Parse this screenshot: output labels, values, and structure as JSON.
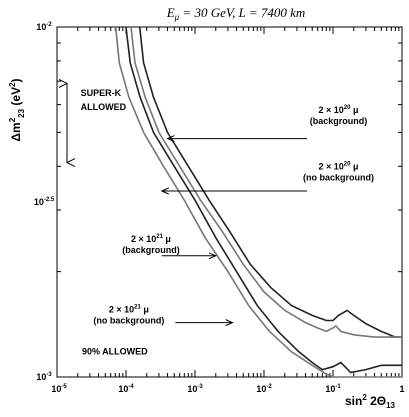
{
  "chart_data": {
    "type": "line",
    "title": "E_μ = 30 GeV, L = 7400 km",
    "title_parts": {
      "e_symbol": "E",
      "e_sub": "μ",
      "rest": " = 30 GeV, L = 7400 km"
    },
    "xlabel": {
      "prefix": "sin",
      "sup": "2",
      "mid": " 2Θ",
      "sub": "13"
    },
    "ylabel": {
      "prefix": "Δm",
      "sup": "2",
      "sub": "23",
      "unit_open": " (eV",
      "unit_sup": "2",
      "unit_close": ")"
    },
    "xscale": "log",
    "yscale": "log",
    "xlim": [
      1e-05,
      1
    ],
    "ylim": [
      0.001,
      0.01
    ],
    "x_ticks": [
      {
        "base": "10",
        "exp": "-5",
        "value": 1e-05
      },
      {
        "base": "10",
        "exp": "-4",
        "value": 0.0001
      },
      {
        "base": "10",
        "exp": "-3",
        "value": 0.001
      },
      {
        "base": "10",
        "exp": "-2",
        "value": 0.01
      },
      {
        "base": "10",
        "exp": "-1",
        "value": 0.1
      },
      {
        "base": "1",
        "exp": "",
        "value": 1
      }
    ],
    "y_ticks": [
      {
        "base": "10",
        "exp": "-3",
        "value": 0.001
      },
      {
        "base": "10",
        "exp": "-2.5",
        "value": 0.00316
      },
      {
        "base": "10",
        "exp": "-2",
        "value": 0.01
      }
    ],
    "series": [
      {
        "color": "#222222",
        "points": [
          [
            0.000158,
            0.01
          ],
          [
            0.00018,
            0.0079
          ],
          [
            0.00025,
            0.0063
          ],
          [
            0.0004,
            0.005
          ],
          [
            0.0008,
            0.004
          ],
          [
            0.0016,
            0.0032
          ],
          [
            0.0032,
            0.0026
          ],
          [
            0.0063,
            0.0021
          ],
          [
            0.0126,
            0.0018
          ],
          [
            0.0251,
            0.0016
          ],
          [
            0.05,
            0.0015
          ],
          [
            0.08,
            0.00145
          ],
          [
            0.1,
            0.00145
          ],
          [
            0.12,
            0.0015
          ],
          [
            0.16,
            0.00155
          ],
          [
            0.2,
            0.0015
          ],
          [
            0.3,
            0.00142
          ],
          [
            0.5,
            0.00135
          ],
          [
            0.8,
            0.0013
          ],
          [
            1,
            0.0013
          ]
        ]
      },
      {
        "color": "#777777",
        "points": [
          [
            0.000118,
            0.01
          ],
          [
            0.000135,
            0.0079
          ],
          [
            0.00019,
            0.0063
          ],
          [
            0.0003,
            0.005
          ],
          [
            0.0006,
            0.004
          ],
          [
            0.0012,
            0.0032
          ],
          [
            0.0025,
            0.0026
          ],
          [
            0.005,
            0.0021
          ],
          [
            0.01,
            0.00175
          ],
          [
            0.02,
            0.00155
          ],
          [
            0.04,
            0.00143
          ],
          [
            0.06,
            0.00138
          ],
          [
            0.08,
            0.00135
          ],
          [
            0.1,
            0.00138
          ],
          [
            0.11,
            0.0014
          ],
          [
            0.13,
            0.00135
          ],
          [
            0.2,
            0.00132
          ],
          [
            0.4,
            0.0013
          ],
          [
            0.7,
            0.0013
          ],
          [
            1,
            0.0013
          ]
        ]
      },
      {
        "color": "#222222",
        "points": [
          [
            0.0001,
            0.01
          ],
          [
            0.000115,
            0.0079
          ],
          [
            0.00016,
            0.0063
          ],
          [
            0.00025,
            0.005
          ],
          [
            0.0005,
            0.004
          ],
          [
            0.001,
            0.0032
          ],
          [
            0.002,
            0.0025
          ],
          [
            0.004,
            0.002
          ],
          [
            0.008,
            0.0016
          ],
          [
            0.016,
            0.00135
          ],
          [
            0.032,
            0.00118
          ],
          [
            0.05,
            0.0011
          ],
          [
            0.07,
            0.00105
          ],
          [
            0.1,
            0.00107
          ],
          [
            0.13,
            0.0011
          ],
          [
            0.18,
            0.00103
          ],
          [
            0.3,
            0.00105
          ],
          [
            0.5,
            0.00108
          ],
          [
            0.8,
            0.00108
          ],
          [
            1,
            0.00108
          ]
        ]
      },
      {
        "color": "#777777",
        "points": [
          [
            7.1e-05,
            0.01
          ],
          [
            8e-05,
            0.0079
          ],
          [
            0.00011,
            0.0063
          ],
          [
            0.00018,
            0.005
          ],
          [
            0.00035,
            0.004
          ],
          [
            0.0007,
            0.0032
          ],
          [
            0.0014,
            0.0025
          ],
          [
            0.003,
            0.002
          ],
          [
            0.006,
            0.0016
          ],
          [
            0.012,
            0.00135
          ],
          [
            0.025,
            0.00118
          ],
          [
            0.05,
            0.00108
          ],
          [
            0.08,
            0.00102
          ],
          [
            0.1,
            0.001
          ],
          [
            0.2,
            0.001
          ],
          [
            0.5,
            0.001
          ],
          [
            1,
            0.001
          ]
        ]
      }
    ],
    "annotations": [
      {
        "label_main": "2 × 10",
        "exp": "20",
        "unit": " μ",
        "note": "(background)",
        "target_series": 0,
        "text_at": [
          0.12,
          0.00567
        ],
        "arrow_from": [
          0.042,
          0.0048
        ],
        "arrow_to": [
          0.0004,
          0.0048
        ]
      },
      {
        "label_main": "2 × 10",
        "exp": "20",
        "unit": " μ",
        "note": "(no background)",
        "target_series": 1,
        "text_at": [
          0.12,
          0.00392
        ],
        "arrow_from": [
          0.042,
          0.0034
        ],
        "arrow_to": [
          0.00033,
          0.0034
        ]
      },
      {
        "label_main": "2 × 10",
        "exp": "21",
        "unit": " μ",
        "note": "(background)",
        "target_series": 2,
        "text_at": [
          0.00023,
          0.00243
        ],
        "arrow_from": [
          0.00033,
          0.00222
        ],
        "arrow_to": [
          0.002,
          0.00222
        ]
      },
      {
        "label_main": "2 × 10",
        "exp": "21",
        "unit": " μ",
        "note": "(no background)",
        "target_series": 3,
        "text_at": [
          0.00011,
          0.00153
        ],
        "arrow_from": [
          0.00052,
          0.00143
        ],
        "arrow_to": [
          0.0035,
          0.00143
        ]
      }
    ],
    "text_labels": [
      {
        "lines": [
          "SUPER-K",
          "ALLOWED"
        ],
        "at": [
          2.2e-05,
          0.00636
        ]
      },
      {
        "lines": [
          "90% ALLOWED"
        ],
        "at": [
          2.3e-05,
          0.00116
        ]
      }
    ],
    "superk_range": [
      0.0041,
      0.0069
    ]
  }
}
